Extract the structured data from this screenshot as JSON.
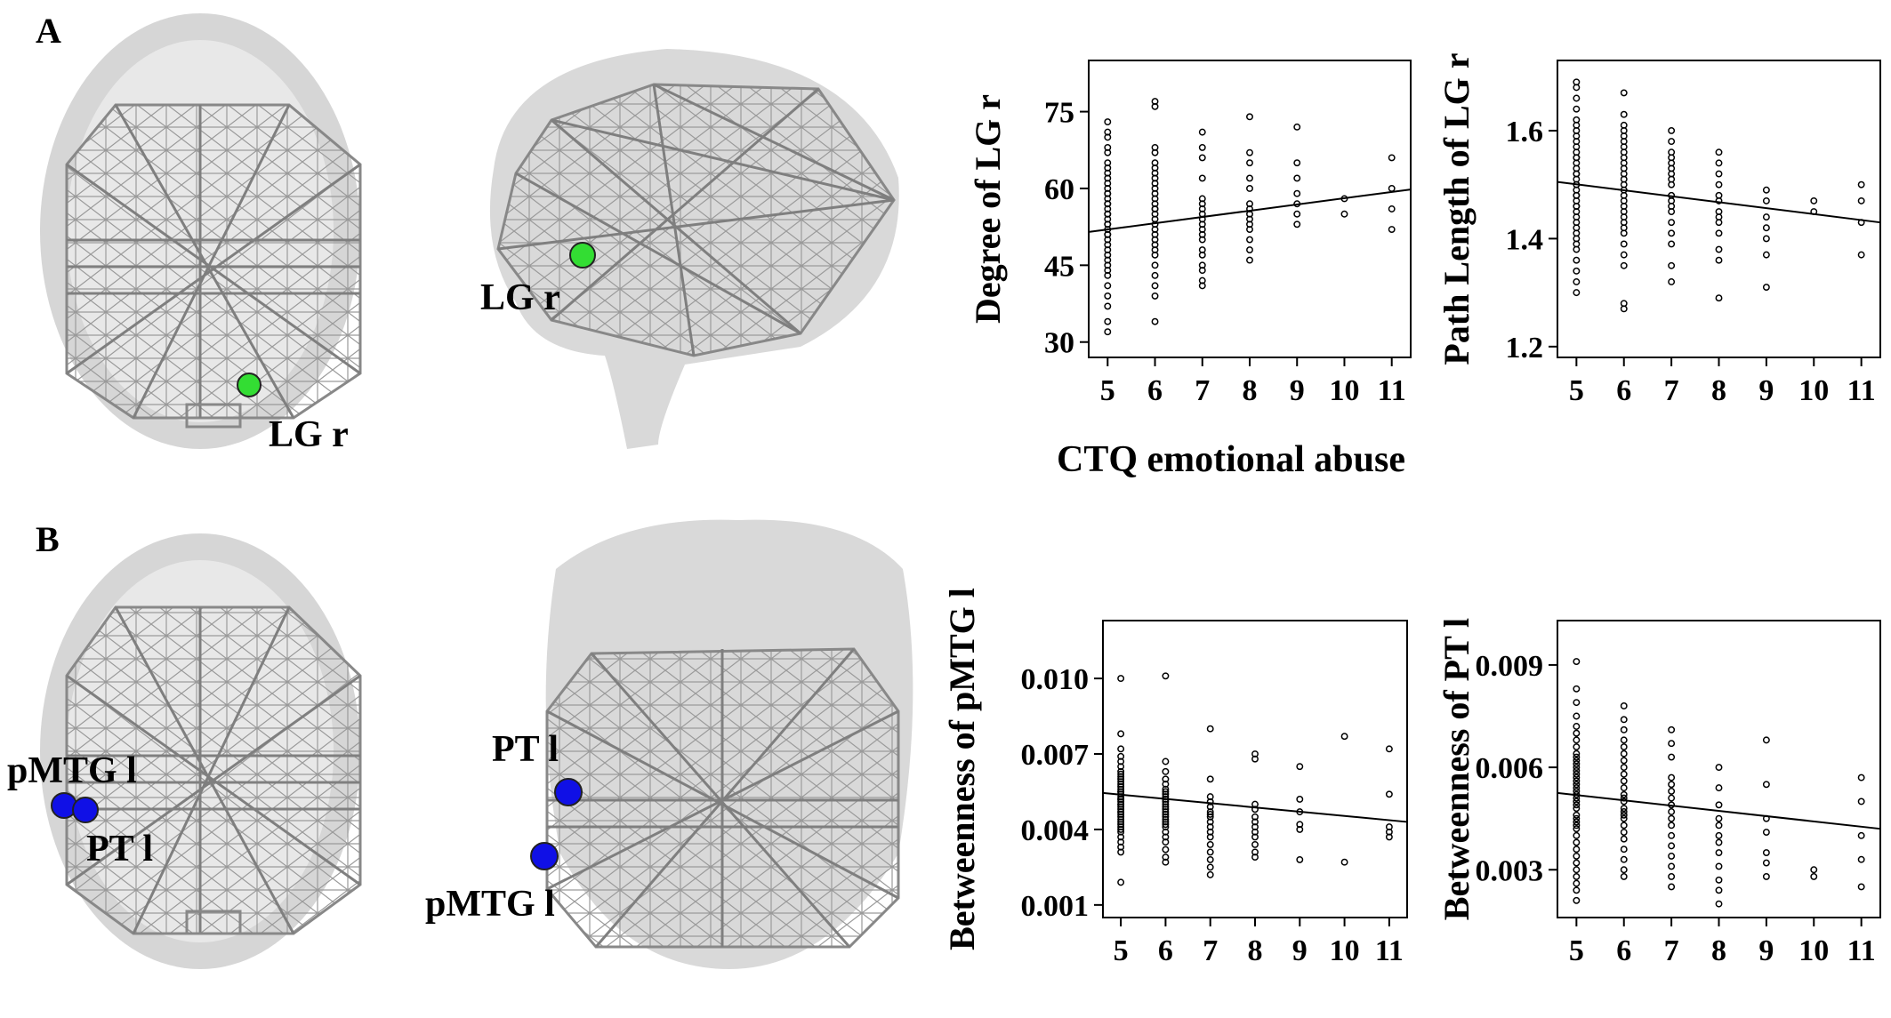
{
  "figure": {
    "panel_a_letter": "A",
    "panel_b_letter": "B",
    "colors": {
      "panel_a_node": "#33dd33",
      "panel_b_node": "#1010e6",
      "network_line": "#8a8a8a",
      "brain": "#d4d4d4"
    },
    "brain_views": [
      {
        "name": "axial-a",
        "labels": [
          "LG r"
        ]
      },
      {
        "name": "sagittal-a",
        "labels": [
          "LG r"
        ]
      },
      {
        "name": "axial-b",
        "labels": [
          "pMTG l",
          "PT l"
        ]
      },
      {
        "name": "coronal-b",
        "labels": [
          "PT l",
          "pMTG l"
        ]
      }
    ],
    "shared_xlabel_a": "CTQ emotional abuse"
  },
  "chart_data": [
    {
      "type": "scatter",
      "title": "",
      "xlabel": "",
      "ylabel": "Degree of LG r",
      "xticks": [
        "5",
        "6",
        "7",
        "8",
        "9",
        "10",
        "11"
      ],
      "yticks": [
        "30",
        "45",
        "60",
        "75"
      ],
      "xlim": [
        4.6,
        11.4
      ],
      "ylim": [
        27,
        85
      ],
      "fit_line": {
        "x": [
          4.6,
          11.4
        ],
        "y": [
          51.5,
          59.8
        ]
      },
      "x": [
        5,
        5,
        5,
        5,
        5,
        5,
        5,
        5,
        5,
        5,
        5,
        5,
        5,
        5,
        5,
        5,
        5,
        5,
        5,
        5,
        5,
        5,
        5,
        5,
        5,
        5,
        5,
        5,
        5,
        5,
        5,
        5,
        5,
        5,
        5,
        5,
        5,
        5,
        6,
        6,
        6,
        6,
        6,
        6,
        6,
        6,
        6,
        6,
        6,
        6,
        6,
        6,
        6,
        6,
        6,
        6,
        6,
        6,
        6,
        6,
        6,
        6,
        6,
        6,
        6,
        6,
        6,
        7,
        7,
        7,
        7,
        7,
        7,
        7,
        7,
        7,
        7,
        7,
        7,
        7,
        7,
        7,
        7,
        7,
        7,
        7,
        8,
        8,
        8,
        8,
        8,
        8,
        8,
        8,
        8,
        8,
        8,
        8,
        8,
        8,
        9,
        9,
        9,
        9,
        9,
        9,
        9,
        10,
        10,
        11,
        11,
        11,
        11
      ],
      "y": [
        32,
        34,
        37,
        39,
        41,
        43,
        44,
        45,
        46,
        47,
        48,
        49,
        50,
        51,
        51,
        52,
        53,
        53,
        54,
        55,
        55,
        56,
        57,
        57,
        58,
        59,
        59,
        60,
        61,
        62,
        63,
        64,
        65,
        67,
        68,
        70,
        71,
        73,
        34,
        39,
        41,
        43,
        45,
        47,
        48,
        49,
        50,
        51,
        52,
        53,
        54,
        55,
        56,
        56,
        57,
        58,
        59,
        60,
        61,
        62,
        63,
        64,
        65,
        67,
        68,
        76,
        77,
        41,
        42,
        44,
        45,
        47,
        48,
        50,
        51,
        52,
        53,
        54,
        55,
        56,
        57,
        58,
        62,
        66,
        68,
        71,
        46,
        48,
        50,
        52,
        53,
        54,
        55,
        56,
        57,
        60,
        62,
        65,
        67,
        74,
        53,
        55,
        57,
        59,
        62,
        65,
        72,
        55,
        58,
        52,
        56,
        60,
        66
      ]
    },
    {
      "type": "scatter",
      "title": "",
      "xlabel": "",
      "ylabel": "Path Length of LG r",
      "xticks": [
        "5",
        "6",
        "7",
        "8",
        "9",
        "10",
        "11"
      ],
      "yticks": [
        "1.2",
        "1.4",
        "1.6"
      ],
      "xlim": [
        4.6,
        11.4
      ],
      "ylim": [
        1.18,
        1.73
      ],
      "fit_line": {
        "x": [
          4.6,
          11.4
        ],
        "y": [
          1.505,
          1.43
        ]
      },
      "x": [
        5,
        5,
        5,
        5,
        5,
        5,
        5,
        5,
        5,
        5,
        5,
        5,
        5,
        5,
        5,
        5,
        5,
        5,
        5,
        5,
        5,
        5,
        5,
        5,
        5,
        5,
        5,
        5,
        5,
        5,
        5,
        5,
        5,
        5,
        5,
        5,
        5,
        5,
        6,
        6,
        6,
        6,
        6,
        6,
        6,
        6,
        6,
        6,
        6,
        6,
        6,
        6,
        6,
        6,
        6,
        6,
        6,
        6,
        6,
        6,
        6,
        6,
        6,
        6,
        6,
        6,
        7,
        7,
        7,
        7,
        7,
        7,
        7,
        7,
        7,
        7,
        7,
        7,
        7,
        7,
        7,
        7,
        7,
        7,
        8,
        8,
        8,
        8,
        8,
        8,
        8,
        8,
        8,
        8,
        8,
        8,
        8,
        9,
        9,
        9,
        9,
        9,
        9,
        9,
        10,
        10,
        11,
        11,
        11,
        11
      ],
      "y": [
        1.3,
        1.32,
        1.34,
        1.36,
        1.38,
        1.39,
        1.4,
        1.41,
        1.42,
        1.43,
        1.44,
        1.45,
        1.46,
        1.46,
        1.47,
        1.48,
        1.48,
        1.49,
        1.5,
        1.5,
        1.51,
        1.52,
        1.52,
        1.53,
        1.54,
        1.55,
        1.55,
        1.56,
        1.57,
        1.58,
        1.59,
        1.6,
        1.61,
        1.62,
        1.64,
        1.66,
        1.68,
        1.69,
        1.27,
        1.28,
        1.35,
        1.37,
        1.39,
        1.41,
        1.42,
        1.43,
        1.44,
        1.45,
        1.46,
        1.47,
        1.48,
        1.49,
        1.5,
        1.51,
        1.52,
        1.53,
        1.54,
        1.55,
        1.56,
        1.57,
        1.58,
        1.59,
        1.6,
        1.61,
        1.63,
        1.67,
        1.32,
        1.35,
        1.39,
        1.41,
        1.43,
        1.45,
        1.46,
        1.47,
        1.48,
        1.5,
        1.51,
        1.52,
        1.53,
        1.54,
        1.55,
        1.56,
        1.58,
        1.6,
        1.29,
        1.36,
        1.38,
        1.41,
        1.43,
        1.44,
        1.45,
        1.47,
        1.48,
        1.5,
        1.52,
        1.54,
        1.56,
        1.31,
        1.37,
        1.4,
        1.42,
        1.44,
        1.47,
        1.49,
        1.45,
        1.47,
        1.37,
        1.43,
        1.47,
        1.5
      ]
    },
    {
      "type": "scatter",
      "title": "",
      "xlabel": "",
      "ylabel": "Betweenness of pMTG l",
      "xticks": [
        "5",
        "6",
        "7",
        "8",
        "9",
        "10",
        "11"
      ],
      "yticks": [
        "0.001",
        "0.004",
        "0.007",
        "0.010"
      ],
      "xlim": [
        4.6,
        11.4
      ],
      "ylim": [
        0.0005,
        0.0123
      ],
      "fit_line": {
        "x": [
          4.6,
          11.4
        ],
        "y": [
          0.00545,
          0.0043
        ]
      },
      "x": [
        5,
        5,
        5,
        5,
        5,
        5,
        5,
        5,
        5,
        5,
        5,
        5,
        5,
        5,
        5,
        5,
        5,
        5,
        5,
        5,
        5,
        5,
        5,
        5,
        5,
        5,
        5,
        5,
        5,
        5,
        5,
        5,
        5,
        5,
        5,
        5,
        5,
        5,
        5,
        5,
        6,
        6,
        6,
        6,
        6,
        6,
        6,
        6,
        6,
        6,
        6,
        6,
        6,
        6,
        6,
        6,
        6,
        6,
        6,
        6,
        6,
        6,
        6,
        6,
        6,
        6,
        6,
        7,
        7,
        7,
        7,
        7,
        7,
        7,
        7,
        7,
        7,
        7,
        7,
        7,
        7,
        7,
        7,
        7,
        8,
        8,
        8,
        8,
        8,
        8,
        8,
        8,
        8,
        8,
        8,
        8,
        9,
        9,
        9,
        9,
        9,
        9,
        10,
        10,
        11,
        11,
        11,
        11,
        11
      ],
      "y": [
        0.0019,
        0.0031,
        0.0033,
        0.0035,
        0.0037,
        0.0039,
        0.004,
        0.0041,
        0.0042,
        0.0043,
        0.0044,
        0.0045,
        0.0046,
        0.0047,
        0.0047,
        0.0048,
        0.0049,
        0.005,
        0.005,
        0.0051,
        0.0052,
        0.0052,
        0.0053,
        0.0054,
        0.0055,
        0.0055,
        0.0056,
        0.0057,
        0.0058,
        0.0059,
        0.006,
        0.0061,
        0.0062,
        0.0063,
        0.0065,
        0.0067,
        0.0069,
        0.0072,
        0.0078,
        0.01,
        0.0027,
        0.0029,
        0.0032,
        0.0035,
        0.0037,
        0.0039,
        0.0041,
        0.0042,
        0.0043,
        0.0044,
        0.0045,
        0.0046,
        0.0047,
        0.0048,
        0.0049,
        0.005,
        0.0051,
        0.0052,
        0.0053,
        0.0054,
        0.0055,
        0.0056,
        0.0058,
        0.006,
        0.0063,
        0.0067,
        0.0101,
        0.0022,
        0.0025,
        0.0028,
        0.0031,
        0.0034,
        0.0037,
        0.0039,
        0.0041,
        0.0043,
        0.0045,
        0.0046,
        0.0047,
        0.0049,
        0.0051,
        0.0053,
        0.006,
        0.008,
        0.0029,
        0.0031,
        0.0034,
        0.0037,
        0.0039,
        0.0041,
        0.0043,
        0.0045,
        0.0048,
        0.005,
        0.0068,
        0.007,
        0.0028,
        0.004,
        0.0042,
        0.0047,
        0.0052,
        0.0065,
        0.0027,
        0.0077,
        0.0037,
        0.0039,
        0.0041,
        0.0054,
        0.0072
      ]
    },
    {
      "type": "scatter",
      "title": "",
      "xlabel": "",
      "ylabel": "Betweenness of PT l",
      "xticks": [
        "5",
        "6",
        "7",
        "8",
        "9",
        "10",
        "11"
      ],
      "yticks": [
        "0.003",
        "0.006",
        "0.009"
      ],
      "xlim": [
        4.6,
        11.4
      ],
      "ylim": [
        0.0016,
        0.0103
      ],
      "fit_line": {
        "x": [
          4.6,
          11.4
        ],
        "y": [
          0.00525,
          0.0042
        ]
      },
      "x": [
        5,
        5,
        5,
        5,
        5,
        5,
        5,
        5,
        5,
        5,
        5,
        5,
        5,
        5,
        5,
        5,
        5,
        5,
        5,
        5,
        5,
        5,
        5,
        5,
        5,
        5,
        5,
        5,
        5,
        5,
        5,
        5,
        5,
        5,
        5,
        5,
        5,
        5,
        5,
        5,
        6,
        6,
        6,
        6,
        6,
        6,
        6,
        6,
        6,
        6,
        6,
        6,
        6,
        6,
        6,
        6,
        6,
        6,
        6,
        6,
        6,
        6,
        6,
        6,
        6,
        7,
        7,
        7,
        7,
        7,
        7,
        7,
        7,
        7,
        7,
        7,
        7,
        7,
        7,
        7,
        7,
        7,
        8,
        8,
        8,
        8,
        8,
        8,
        8,
        8,
        8,
        8,
        8,
        8,
        9,
        9,
        9,
        9,
        9,
        9,
        9,
        10,
        10,
        11,
        11,
        11,
        11,
        11
      ],
      "y": [
        0.0021,
        0.0024,
        0.0026,
        0.0028,
        0.003,
        0.0032,
        0.0034,
        0.0036,
        0.0038,
        0.004,
        0.0042,
        0.0043,
        0.0044,
        0.0045,
        0.0046,
        0.0048,
        0.0049,
        0.005,
        0.0051,
        0.0052,
        0.0053,
        0.0054,
        0.0055,
        0.0056,
        0.0057,
        0.0058,
        0.0059,
        0.006,
        0.0061,
        0.0062,
        0.0063,
        0.0064,
        0.0066,
        0.0068,
        0.007,
        0.0072,
        0.0075,
        0.0079,
        0.0083,
        0.0091,
        0.0028,
        0.003,
        0.0033,
        0.0036,
        0.0039,
        0.0041,
        0.0043,
        0.0045,
        0.0046,
        0.0047,
        0.0048,
        0.005,
        0.0051,
        0.0052,
        0.0054,
        0.0056,
        0.0058,
        0.006,
        0.0062,
        0.0064,
        0.0066,
        0.0068,
        0.0071,
        0.0074,
        0.0078,
        0.0025,
        0.0028,
        0.0031,
        0.0034,
        0.0037,
        0.004,
        0.0043,
        0.0045,
        0.0047,
        0.0049,
        0.0051,
        0.0053,
        0.0055,
        0.0057,
        0.0063,
        0.0067,
        0.0071,
        0.002,
        0.0024,
        0.0027,
        0.0031,
        0.0035,
        0.0038,
        0.004,
        0.0043,
        0.0045,
        0.0049,
        0.0054,
        0.006,
        0.0028,
        0.0032,
        0.0035,
        0.0041,
        0.0045,
        0.0055,
        0.0068,
        0.0028,
        0.003,
        0.0025,
        0.0033,
        0.004,
        0.005,
        0.0057
      ]
    }
  ]
}
